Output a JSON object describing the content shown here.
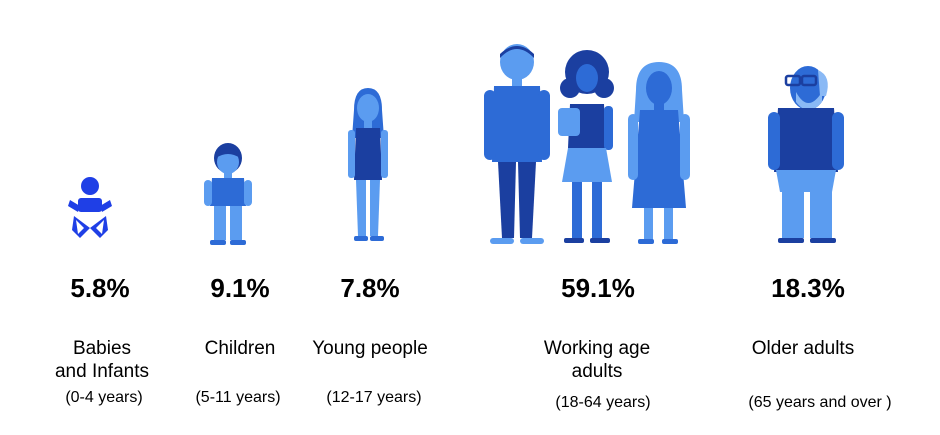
{
  "groups": [
    {
      "percent": "5.8%",
      "label_line1": "Babies",
      "label_line2": "and Infants",
      "range": "(0-4 years)"
    },
    {
      "percent": "9.1%",
      "label_line1": "Children",
      "label_line2": "",
      "range": "(5-11 years)"
    },
    {
      "percent": "7.8%",
      "label_line1": "Young people",
      "label_line2": "",
      "range": "(12-17 years)"
    },
    {
      "percent": "59.1%",
      "label_line1": "Working age",
      "label_line2": "adults",
      "range": "(18-64 years)"
    },
    {
      "percent": "18.3%",
      "label_line1": "Older adults",
      "label_line2": "",
      "range": "(65 years and over )"
    }
  ],
  "colors": {
    "dark": "#1b3fa0",
    "mid": "#2d6bd6",
    "light": "#5b9cf0",
    "pale": "#8ab9f5",
    "baby": "#1f3fe6"
  },
  "icons": [
    "baby-icon",
    "child-icon",
    "young-person-icon",
    "man-icon",
    "woman-curly-icon",
    "woman-long-hair-icon",
    "older-man-icon"
  ]
}
